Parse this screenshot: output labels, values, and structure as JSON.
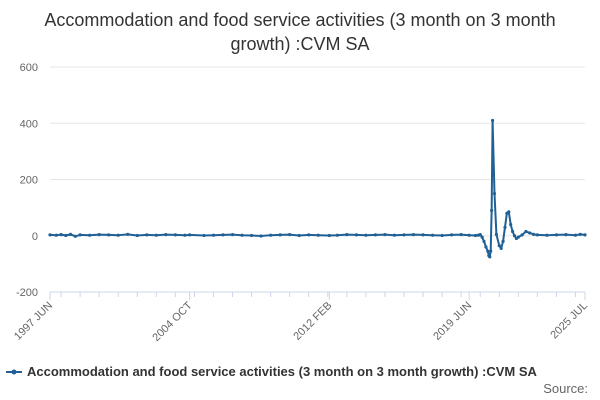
{
  "chart_data": {
    "type": "line",
    "title": "Accommodation and food service activities (3 month on 3 month growth) :CVM SA",
    "xlabel": "",
    "ylabel": "",
    "ylim": [
      -200,
      600
    ],
    "yticks": [
      600,
      400,
      200,
      0,
      -200
    ],
    "xlim": [
      1997.42,
      2025.5
    ],
    "xticks": [
      {
        "label": "1997 JUN",
        "value": 1997.42
      },
      {
        "label": "2004 OCT",
        "value": 2004.75
      },
      {
        "label": "2012 FEB",
        "value": 2012.08
      },
      {
        "label": "2019 JUN",
        "value": 2019.42
      },
      {
        "label": "2025 JUL",
        "value": 2025.5
      }
    ],
    "grid": true,
    "legend_position": "bottom",
    "series": [
      {
        "name": "Accommodation and food service activities (3 month on 3 month growth) :CVM SA",
        "color": "#206095",
        "x": [
          1997.42,
          1997.75,
          1998.0,
          1998.25,
          1998.5,
          1998.75,
          1999.0,
          1999.5,
          2000.0,
          2000.5,
          2001.0,
          2001.5,
          2002.0,
          2002.5,
          2003.0,
          2003.5,
          2004.0,
          2004.5,
          2004.75,
          2005.5,
          2006.0,
          2006.5,
          2007.0,
          2007.5,
          2008.0,
          2008.5,
          2009.0,
          2009.5,
          2010.0,
          2010.5,
          2011.0,
          2011.5,
          2012.08,
          2012.5,
          2013.0,
          2013.5,
          2014.0,
          2014.5,
          2015.0,
          2015.5,
          2016.0,
          2016.5,
          2017.0,
          2017.5,
          2018.0,
          2018.5,
          2019.0,
          2019.42,
          2019.75,
          2019.9,
          2020.0,
          2020.1,
          2020.2,
          2020.3,
          2020.4,
          2020.45,
          2020.5,
          2020.55,
          2020.6,
          2020.65,
          2020.75,
          2020.85,
          2021.0,
          2021.1,
          2021.2,
          2021.3,
          2021.4,
          2021.5,
          2021.6,
          2021.7,
          2021.8,
          2021.9,
          2022.0,
          2022.2,
          2022.4,
          2022.6,
          2022.8,
          2023.0,
          2023.5,
          2024.0,
          2024.5,
          2025.0,
          2025.25,
          2025.5
        ],
        "values": [
          3,
          2,
          4,
          1,
          5,
          -2,
          3,
          2,
          4,
          3,
          2,
          5,
          1,
          3,
          2,
          4,
          3,
          2,
          3,
          1,
          2,
          3,
          4,
          2,
          1,
          -1,
          2,
          3,
          4,
          1,
          3,
          2,
          1,
          2,
          4,
          3,
          2,
          3,
          4,
          2,
          3,
          4,
          3,
          2,
          1,
          3,
          4,
          2,
          1,
          2,
          4,
          -5,
          -20,
          -40,
          -55,
          -70,
          -75,
          -55,
          90,
          410,
          150,
          5,
          -35,
          -45,
          -20,
          30,
          80,
          85,
          40,
          15,
          0,
          -10,
          -5,
          3,
          15,
          10,
          5,
          3,
          2,
          3,
          4,
          2,
          5,
          3
        ]
      }
    ]
  },
  "legend": {
    "label": "Accommodation and food service activities (3 month on 3 month growth) :CVM SA"
  },
  "source_label": "Source:"
}
